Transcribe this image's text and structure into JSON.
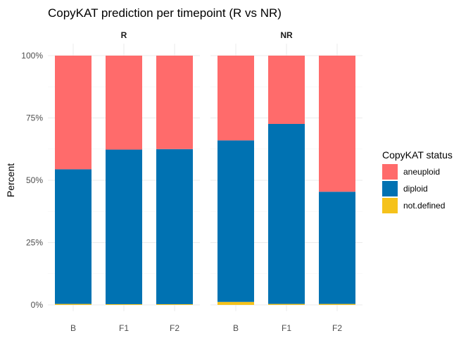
{
  "chart_data": {
    "type": "bar",
    "stacked": true,
    "title": "CopyKAT prediction per timepoint (R vs NR)",
    "xlabel": "",
    "ylabel": "Percent",
    "ylim": [
      0,
      100
    ],
    "y_ticks": [
      "0%",
      "25%",
      "50%",
      "75%",
      "100%"
    ],
    "grid": true,
    "legend_title": "CopyKAT status",
    "legend_position": "right",
    "colors": {
      "aneuploid": "#FF6B6B",
      "diploid": "#0072B2",
      "not.defined": "#F5C21B"
    },
    "stack_order": [
      "not.defined",
      "diploid",
      "aneuploid"
    ],
    "legend_order": [
      "aneuploid",
      "diploid",
      "not.defined"
    ],
    "facets": [
      {
        "label": "R",
        "categories": [
          "B",
          "F1",
          "F2"
        ],
        "series": [
          {
            "name": "not.defined",
            "values": [
              0.4,
              0.3,
              0.3
            ]
          },
          {
            "name": "diploid",
            "values": [
              54.0,
              62.0,
              62.2
            ]
          },
          {
            "name": "aneuploid",
            "values": [
              45.6,
              37.7,
              37.5
            ]
          }
        ]
      },
      {
        "label": "NR",
        "categories": [
          "B",
          "F1",
          "F2"
        ],
        "series": [
          {
            "name": "not.defined",
            "values": [
              1.2,
              0.4,
              0.4
            ]
          },
          {
            "name": "diploid",
            "values": [
              64.8,
              72.2,
              45.0
            ]
          },
          {
            "name": "aneuploid",
            "values": [
              34.0,
              27.4,
              54.6
            ]
          }
        ]
      }
    ]
  }
}
